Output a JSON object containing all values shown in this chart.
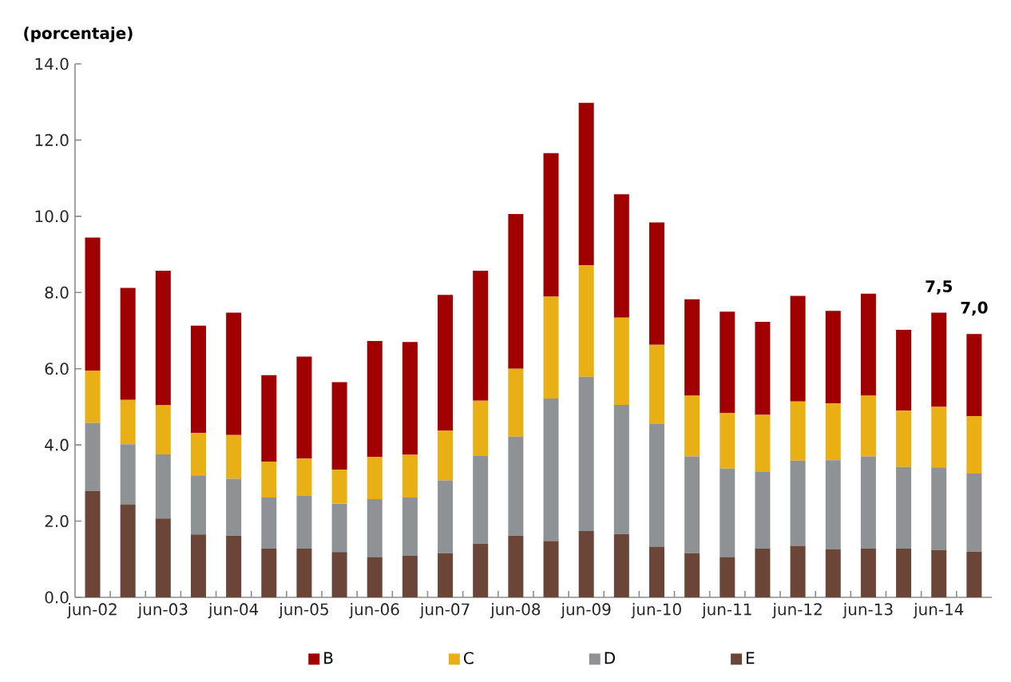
{
  "chart_data": {
    "type": "bar",
    "ylabel": "(porcentaje)",
    "stacked": true,
    "legend": "bottom",
    "categories": [
      "jun-02",
      null,
      "jun-03",
      null,
      "jun-04",
      null,
      "jun-05",
      null,
      "jun-06",
      null,
      "jun-07",
      null,
      "jun-08",
      null,
      "jun-09",
      null,
      "jun-10",
      null,
      "jun-11",
      null,
      "jun-12",
      null,
      "jun-13",
      null,
      "jun-14",
      null
    ],
    "series": [
      {
        "name": "E",
        "color": "#6b4538",
        "values": [
          2.79,
          2.44,
          2.07,
          1.65,
          1.62,
          1.28,
          1.28,
          1.19,
          1.05,
          1.09,
          1.16,
          1.41,
          1.62,
          1.48,
          1.74,
          1.66,
          1.33,
          1.16,
          1.05,
          1.28,
          1.35,
          1.26,
          1.28,
          1.28,
          1.24,
          1.2
        ]
      },
      {
        "name": "D",
        "color": "#8f9294",
        "values": [
          1.79,
          1.58,
          1.68,
          1.55,
          1.49,
          1.34,
          1.39,
          1.27,
          1.53,
          1.53,
          1.91,
          2.3,
          2.6,
          3.74,
          4.05,
          3.39,
          3.22,
          2.54,
          2.33,
          2.01,
          2.24,
          2.34,
          2.42,
          2.14,
          2.17,
          2.05
        ]
      },
      {
        "name": "C",
        "color": "#e8b015",
        "values": [
          1.37,
          1.16,
          1.29,
          1.11,
          1.15,
          0.94,
          0.97,
          0.89,
          1.11,
          1.12,
          1.31,
          1.45,
          1.78,
          2.67,
          2.93,
          2.29,
          2.08,
          1.59,
          1.46,
          1.5,
          1.55,
          1.49,
          1.59,
          1.48,
          1.59,
          1.51
        ]
      },
      {
        "name": "B",
        "color": "#a00000",
        "values": [
          3.49,
          2.94,
          3.53,
          2.82,
          3.21,
          2.27,
          2.68,
          2.3,
          3.04,
          2.96,
          3.56,
          3.41,
          4.06,
          3.77,
          4.26,
          3.24,
          3.21,
          2.53,
          2.66,
          2.44,
          2.77,
          2.43,
          2.68,
          2.12,
          2.47,
          2.15
        ]
      }
    ],
    "totals": [
      null,
      null,
      null,
      null,
      null,
      null,
      null,
      null,
      null,
      null,
      null,
      null,
      null,
      null,
      null,
      null,
      null,
      null,
      null,
      null,
      null,
      null,
      null,
      null,
      "7,5",
      "7,0"
    ],
    "ylim": [
      0,
      14
    ],
    "yticks": [
      {
        "value": 0,
        "label": "0.0"
      },
      {
        "value": 2,
        "label": "2.0"
      },
      {
        "value": 4,
        "label": "4.0"
      },
      {
        "value": 6,
        "label": "6.0"
      },
      {
        "value": 8,
        "label": "8.0"
      },
      {
        "value": 10,
        "label": "10.0"
      },
      {
        "value": 12,
        "label": "12.0"
      },
      {
        "value": 14,
        "label": "14.0"
      }
    ]
  }
}
